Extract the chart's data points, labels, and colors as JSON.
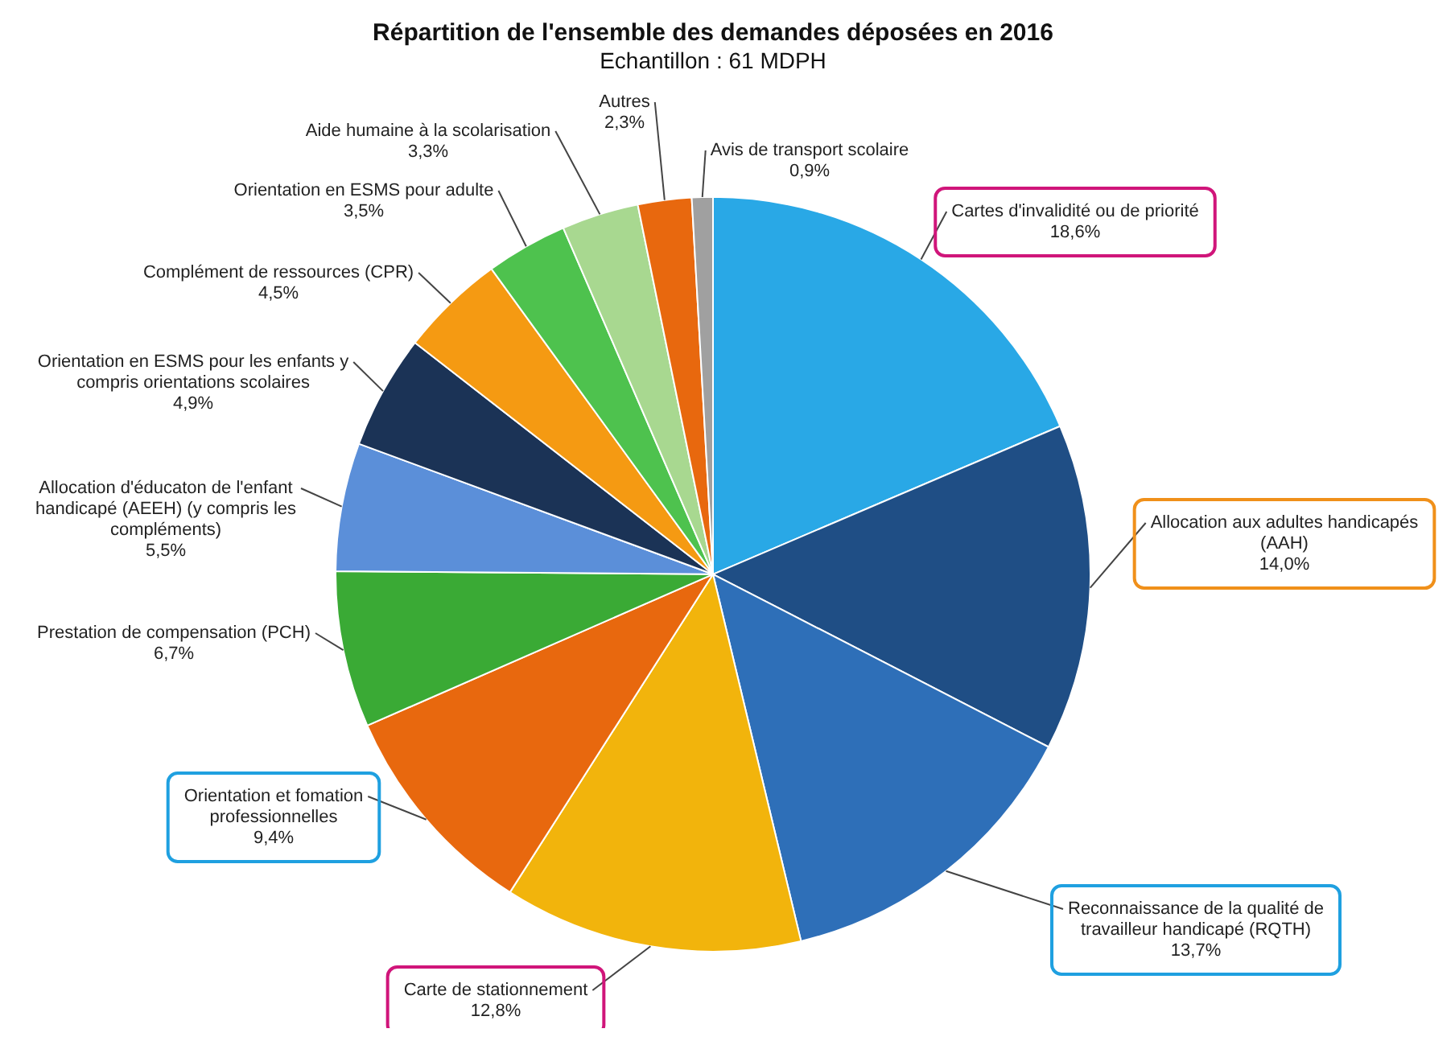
{
  "chart_data": {
    "type": "pie",
    "title": "Répartition de l'ensemble des demandes déposées en 2016",
    "subtitle": "Echantillon : 61 MDPH",
    "categories": [
      "Cartes d'invalidité ou de priorité",
      "Allocation aux adultes handicapés (AAH)",
      "Reconnaissance de la qualité de travailleur handicapé (RQTH)",
      "Carte de stationnement",
      "Orientation et fomation professionnelles",
      "Prestation de compensation (PCH)",
      "Allocation d'éducaton de l'enfant handicapé (AEEH) (y compris les compléments)",
      "Orientation en ESMS pour les enfants y compris orientations scolaires",
      "Complément de ressources (CPR)",
      "Orientation en ESMS pour adulte",
      "Aide humaine à la scolarisation",
      "Autres",
      "Avis de transport scolaire"
    ],
    "values": [
      18.6,
      14.0,
      13.7,
      12.8,
      9.4,
      6.7,
      5.5,
      4.9,
      4.5,
      3.5,
      3.3,
      2.3,
      0.9
    ],
    "value_labels": [
      "18,6%",
      "14,0%",
      "13,7%",
      "12,8%",
      "9,4%",
      "6,7%",
      "5,5%",
      "4,9%",
      "4,5%",
      "3,5%",
      "3,3%",
      "2,3%",
      "0,9%"
    ],
    "colors": [
      "#29a8e6",
      "#1f4e85",
      "#2e6fb8",
      "#f2b40c",
      "#e8680e",
      "#3aaa35",
      "#5b8fd9",
      "#1b3356",
      "#f59a12",
      "#4ec24e",
      "#a8d890",
      "#e8680e",
      "#a0a0a0"
    ],
    "legend": false
  }
}
